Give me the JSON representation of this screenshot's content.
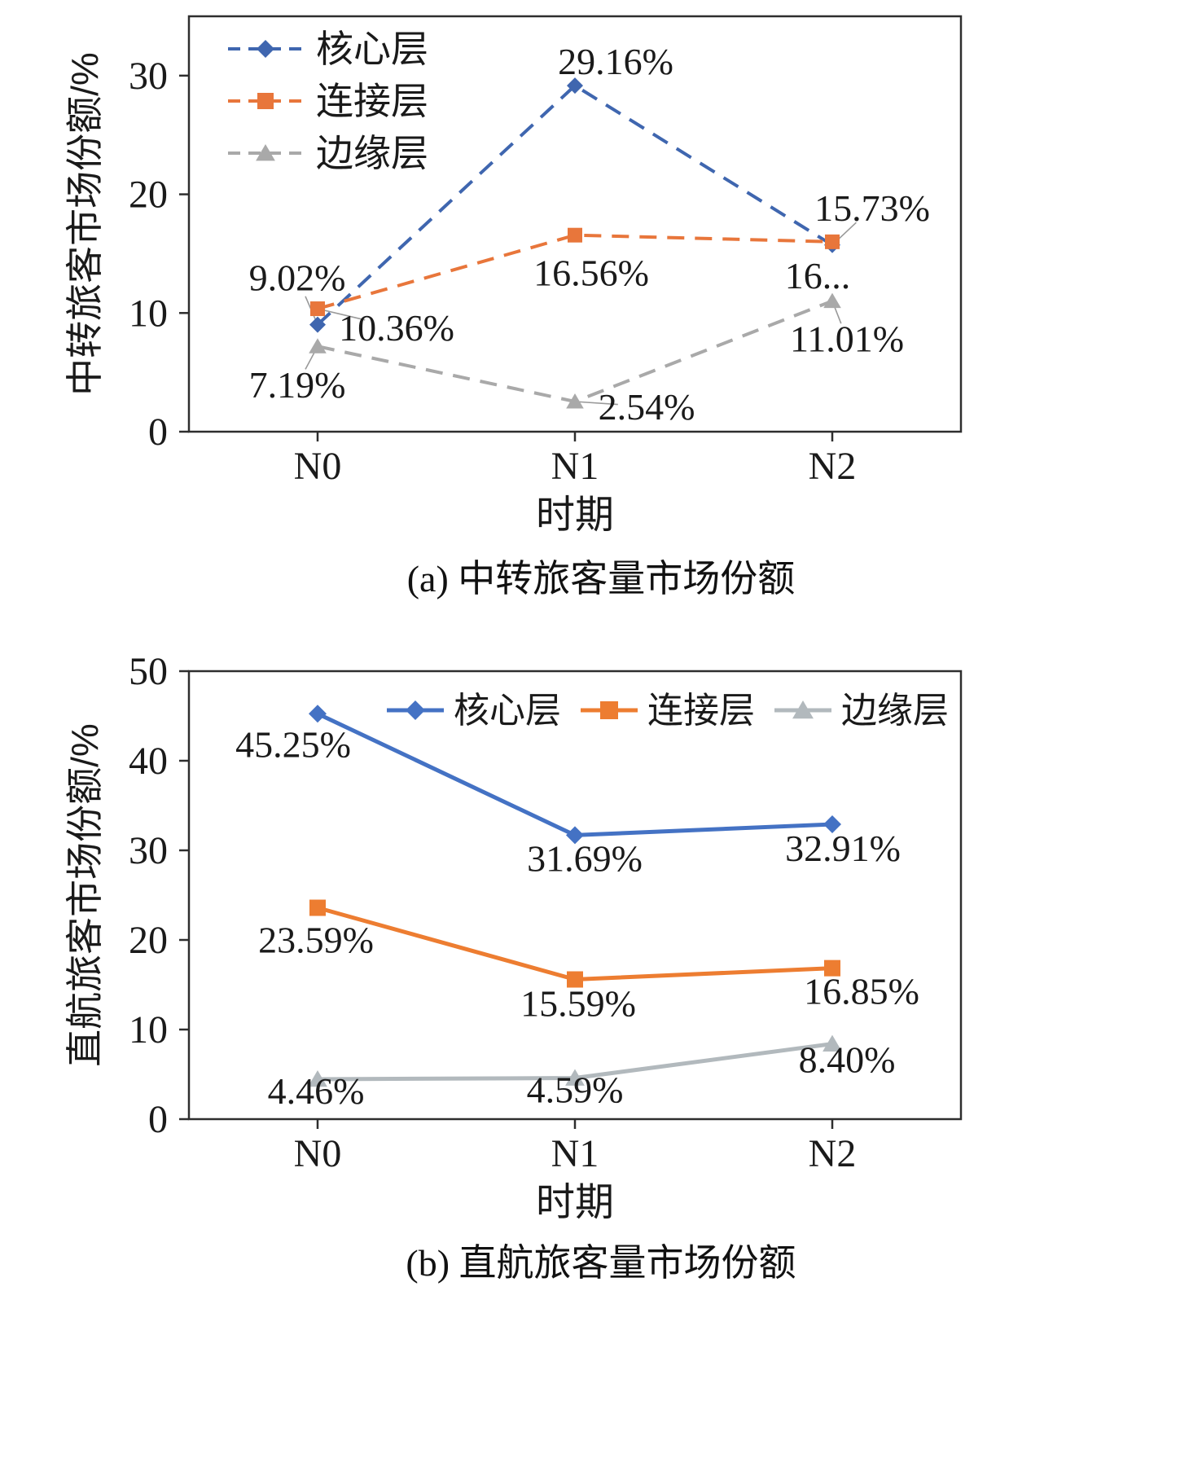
{
  "chart_data": [
    {
      "type": "line",
      "panel": "a",
      "caption": "(a) 中转旅客量市场份额",
      "xlabel": "时期",
      "ylabel": "中转旅客市场份额/%",
      "categories": [
        "N0",
        "N1",
        "N2"
      ],
      "ylim": [
        0,
        35
      ],
      "yticks": [
        0,
        10,
        20,
        30
      ],
      "line_dash": "dashed",
      "legend_position": "upper-left-vertical",
      "series": [
        {
          "name": "核心层",
          "color": "#3f66af",
          "marker": "diamond",
          "values": [
            9.02,
            29.16,
            15.73
          ],
          "labels": [
            "9.02%",
            "29.16%",
            "15.73%"
          ],
          "label_offsets": [
            [
              -25,
              -42
            ],
            [
              50,
              -14
            ],
            [
              49,
              -30
            ]
          ],
          "label_leaders": [
            true,
            false,
            true
          ]
        },
        {
          "name": "连接层",
          "color": "#e8763b",
          "marker": "square",
          "values": [
            10.36,
            16.56,
            16.0
          ],
          "labels": [
            "10.36%",
            "16.56%",
            "16..."
          ],
          "label_offsets": [
            [
              97,
              39
            ],
            [
              20,
              62
            ],
            [
              -18,
              57
            ]
          ],
          "label_leaders": [
            true,
            false,
            false
          ]
        },
        {
          "name": "边缘层",
          "color": "#a9a9a9",
          "marker": "triangle",
          "values": [
            7.19,
            2.54,
            11.01
          ],
          "labels": [
            "7.19%",
            "2.54%",
            "11.01%"
          ],
          "label_offsets": [
            [
              -25,
              63
            ],
            [
              88,
              22
            ],
            [
              18,
              62
            ]
          ],
          "label_leaders": [
            true,
            true,
            true
          ]
        }
      ]
    },
    {
      "type": "line",
      "panel": "b",
      "caption": "(b) 直航旅客量市场份额",
      "xlabel": "时期",
      "ylabel": "直航旅客市场份额/%",
      "categories": [
        "N0",
        "N1",
        "N2"
      ],
      "ylim": [
        0,
        50
      ],
      "yticks": [
        0,
        10,
        20,
        30,
        40,
        50
      ],
      "line_dash": "solid",
      "legend_position": "top-horizontal",
      "series": [
        {
          "name": "核心层",
          "color": "#4472c4",
          "marker": "diamond",
          "values": [
            45.25,
            31.69,
            32.91
          ],
          "labels": [
            "45.25%",
            "31.69%",
            "32.91%"
          ],
          "label_offsets": [
            [
              -30,
              53
            ],
            [
              12,
              44
            ],
            [
              13,
              45
            ]
          ]
        },
        {
          "name": "连接层",
          "color": "#ed7d31",
          "marker": "square",
          "values": [
            23.59,
            15.59,
            16.85
          ],
          "labels": [
            "23.59%",
            "15.59%",
            "16.85%"
          ],
          "label_offsets": [
            [
              -2,
              55
            ],
            [
              4,
              45
            ],
            [
              36,
              44
            ]
          ]
        },
        {
          "name": "边缘层",
          "color": "#b2b9bd",
          "marker": "triangle",
          "values": [
            4.46,
            4.59,
            8.4
          ],
          "labels": [
            "4.46%",
            "4.59%",
            "8.40%"
          ],
          "label_offsets": [
            [
              -2,
              30
            ],
            [
              0,
              30
            ],
            [
              18,
              35
            ]
          ]
        }
      ]
    }
  ]
}
